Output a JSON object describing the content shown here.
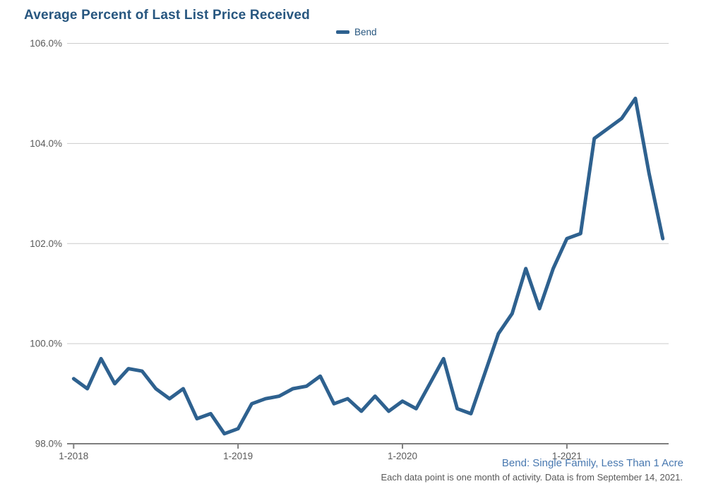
{
  "title": "Average Percent of Last List Price Received",
  "legend": {
    "label": "Bend"
  },
  "footnotes": {
    "series_note": "Bend: Single Family, Less Than 1 Acre",
    "data_note": "Each data point is one month of activity. Data is from September 14, 2021."
  },
  "colors": {
    "series_color": "#2e618f",
    "title_color": "#27567f",
    "axis_color": "#7f7f7f",
    "gridline_color": "#cccccc",
    "tick_label_color": "#5a5a5a",
    "footnote_series_color": "#4878b0",
    "footnote_data_color": "#595959"
  },
  "chart_data": {
    "type": "line",
    "title": "Average Percent of Last List Price Received",
    "xlabel": "",
    "ylabel": "",
    "ylim": [
      98.0,
      106.0
    ],
    "grid": true,
    "legend_position": "top-center",
    "y_tick_labels": [
      "98.0%",
      "100.0%",
      "102.0%",
      "104.0%",
      "106.0%"
    ],
    "y_tick_values": [
      98.0,
      100.0,
      102.0,
      104.0,
      106.0
    ],
    "x_tick_labels": [
      "1-2018",
      "1-2019",
      "1-2020",
      "1-2021"
    ],
    "x_tick_month_indices": [
      0,
      12,
      24,
      36
    ],
    "x": [
      "1-2018",
      "2-2018",
      "3-2018",
      "4-2018",
      "5-2018",
      "6-2018",
      "7-2018",
      "8-2018",
      "9-2018",
      "10-2018",
      "11-2018",
      "12-2018",
      "1-2019",
      "2-2019",
      "3-2019",
      "4-2019",
      "5-2019",
      "6-2019",
      "7-2019",
      "8-2019",
      "9-2019",
      "10-2019",
      "11-2019",
      "12-2019",
      "1-2020",
      "2-2020",
      "3-2020",
      "4-2020",
      "5-2020",
      "6-2020",
      "7-2020",
      "8-2020",
      "9-2020",
      "10-2020",
      "11-2020",
      "12-2020",
      "1-2021",
      "2-2021",
      "3-2021",
      "4-2021",
      "5-2021",
      "6-2021",
      "7-2021",
      "8-2021"
    ],
    "series": [
      {
        "name": "Bend",
        "values": [
          99.3,
          99.1,
          99.7,
          99.2,
          99.5,
          99.45,
          99.1,
          98.9,
          99.1,
          98.5,
          98.6,
          98.2,
          98.3,
          98.8,
          98.9,
          98.95,
          99.1,
          99.15,
          99.35,
          98.8,
          98.9,
          98.65,
          98.95,
          98.65,
          98.85,
          98.7,
          99.2,
          99.7,
          98.7,
          98.6,
          99.4,
          100.2,
          100.6,
          101.5,
          100.7,
          101.5,
          102.1,
          102.2,
          104.1,
          104.3,
          104.5,
          104.9,
          103.4,
          102.1
        ]
      }
    ]
  }
}
